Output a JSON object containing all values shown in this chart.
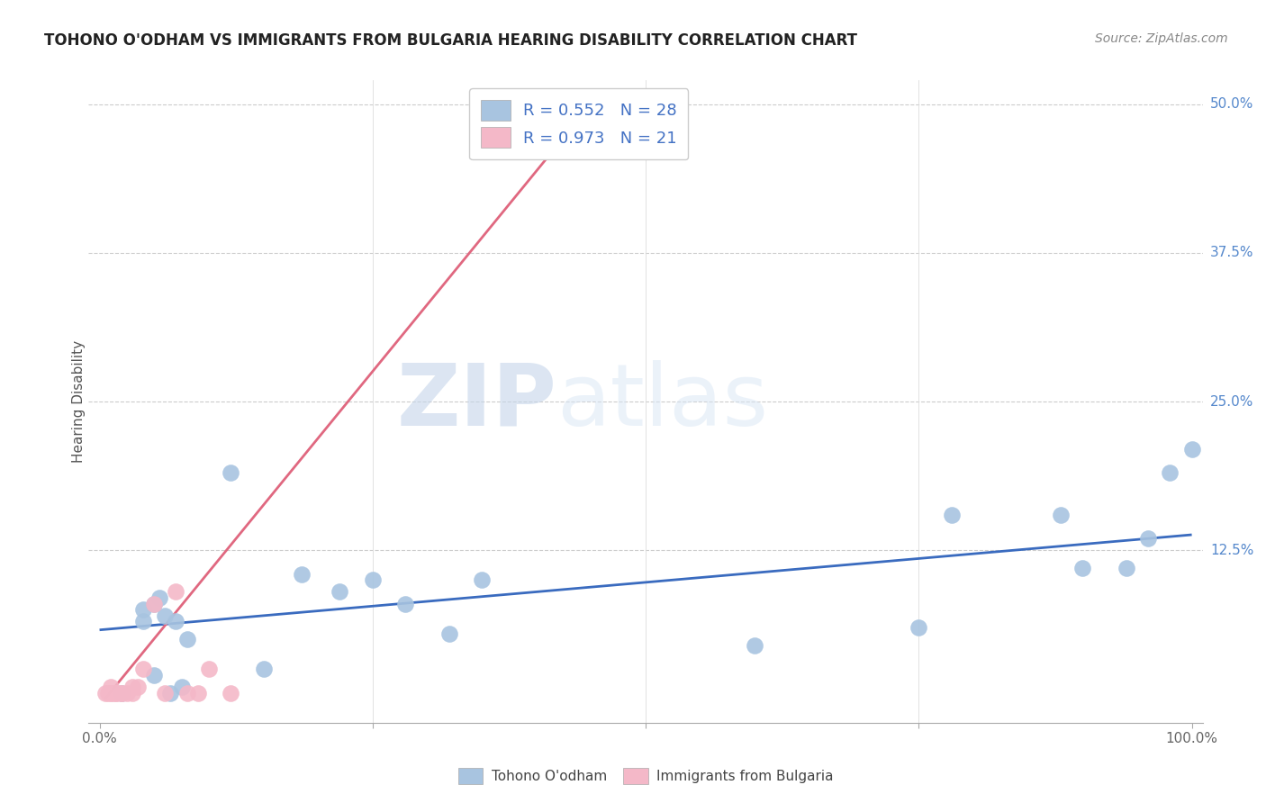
{
  "title": "TOHONO O'ODHAM VS IMMIGRANTS FROM BULGARIA HEARING DISABILITY CORRELATION CHART",
  "source": "Source: ZipAtlas.com",
  "ylabel": "Hearing Disability",
  "xlim": [
    -0.01,
    1.01
  ],
  "ylim": [
    -0.02,
    0.52
  ],
  "xticks": [
    0.0,
    0.25,
    0.5,
    0.75,
    1.0
  ],
  "xtick_labels": [
    "0.0%",
    "",
    "",
    "",
    "100.0%"
  ],
  "yticks": [
    0.0,
    0.125,
    0.25,
    0.375,
    0.5
  ],
  "ytick_labels": [
    "",
    "12.5%",
    "25.0%",
    "37.5%",
    "50.0%"
  ],
  "blue_color": "#a8c4e0",
  "pink_color": "#f4b8c8",
  "blue_line_color": "#3a6bbf",
  "pink_line_color": "#e06880",
  "watermark_zip": "ZIP",
  "watermark_atlas": "atlas",
  "blue_scatter_x": [
    0.02,
    0.04,
    0.04,
    0.05,
    0.05,
    0.055,
    0.06,
    0.065,
    0.07,
    0.075,
    0.08,
    0.12,
    0.15,
    0.185,
    0.22,
    0.25,
    0.28,
    0.32,
    0.35,
    0.6,
    0.75,
    0.78,
    0.88,
    0.9,
    0.94,
    0.96,
    0.98,
    1.0
  ],
  "blue_scatter_y": [
    0.005,
    0.075,
    0.065,
    0.08,
    0.02,
    0.085,
    0.07,
    0.005,
    0.065,
    0.01,
    0.05,
    0.19,
    0.025,
    0.105,
    0.09,
    0.1,
    0.08,
    0.055,
    0.1,
    0.045,
    0.06,
    0.155,
    0.155,
    0.11,
    0.11,
    0.135,
    0.19,
    0.21
  ],
  "pink_scatter_x": [
    0.005,
    0.008,
    0.01,
    0.01,
    0.012,
    0.015,
    0.015,
    0.02,
    0.02,
    0.025,
    0.03,
    0.03,
    0.035,
    0.04,
    0.05,
    0.06,
    0.07,
    0.08,
    0.09,
    0.1,
    0.12
  ],
  "pink_scatter_y": [
    0.005,
    0.005,
    0.01,
    0.005,
    0.005,
    0.005,
    0.005,
    0.005,
    0.005,
    0.005,
    0.01,
    0.005,
    0.01,
    0.025,
    0.08,
    0.005,
    0.09,
    0.005,
    0.005,
    0.025,
    0.005
  ],
  "blue_trendline_x": [
    0.0,
    1.0
  ],
  "blue_trendline_y": [
    0.058,
    0.138
  ],
  "pink_trendline_x": [
    0.005,
    0.45
  ],
  "pink_trendline_y": [
    0.0,
    0.5
  ],
  "legend1_label": "Tohono O'odham",
  "legend2_label": "Immigrants from Bulgaria",
  "legend_r1": "R = 0.552",
  "legend_n1": "N = 28",
  "legend_r2": "R = 0.973",
  "legend_n2": "N = 21"
}
